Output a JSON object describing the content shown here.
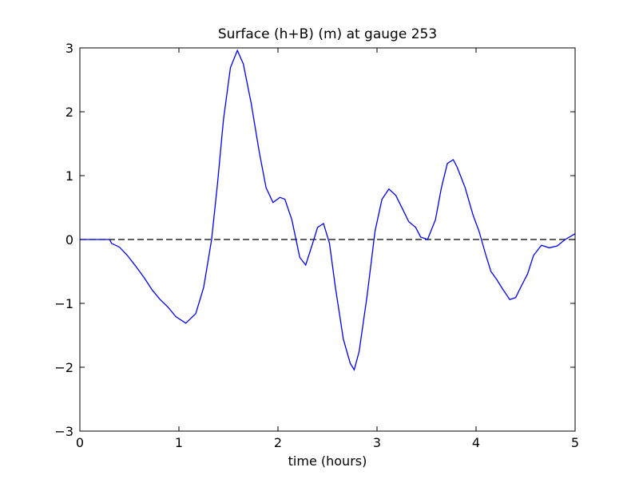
{
  "chart_data": {
    "type": "line",
    "title": "Surface (h+B) (m) at gauge 253",
    "x_label": "time (hours)",
    "x": [
      0,
      0.3,
      0.32,
      0.4,
      0.48,
      0.56,
      0.65,
      0.73,
      0.81,
      0.89,
      0.97,
      1.07,
      1.17,
      1.25,
      1.33,
      1.39,
      1.45,
      1.52,
      1.59,
      1.65,
      1.73,
      1.81,
      1.88,
      1.95,
      2.02,
      2.07,
      2.14,
      2.22,
      2.28,
      2.35,
      2.4,
      2.46,
      2.52,
      2.58,
      2.66,
      2.73,
      2.77,
      2.82,
      2.9,
      2.98,
      3.05,
      3.12,
      3.19,
      3.27,
      3.32,
      3.39,
      3.44,
      3.51,
      3.59,
      3.65,
      3.71,
      3.77,
      3.81,
      3.89,
      3.97,
      4.03,
      4.1,
      4.15,
      4.21,
      4.27,
      4.34,
      4.4,
      4.45,
      4.52,
      4.58,
      4.66,
      4.74,
      4.82,
      4.9,
      5.0
    ],
    "series": [
      {
        "color": "#0000ff",
        "values": [
          0,
          0,
          -0.06,
          -0.12,
          -0.25,
          -0.41,
          -0.6,
          -0.79,
          -0.94,
          -1.06,
          -1.21,
          -1.31,
          -1.16,
          -0.75,
          0,
          0.88,
          1.88,
          2.69,
          2.96,
          2.75,
          2.13,
          1.38,
          0.81,
          0.58,
          0.66,
          0.63,
          0.31,
          -0.28,
          -0.4,
          -0.06,
          0.19,
          0.25,
          -0.06,
          -0.75,
          -1.56,
          -1.94,
          -2.04,
          -1.75,
          -0.88,
          0.13,
          0.63,
          0.79,
          0.69,
          0.44,
          0.28,
          0.19,
          0.04,
          0,
          0.31,
          0.81,
          1.19,
          1.25,
          1.13,
          0.81,
          0.38,
          0.13,
          -0.25,
          -0.5,
          -0.63,
          -0.78,
          -0.94,
          -0.91,
          -0.75,
          -0.54,
          -0.25,
          -0.09,
          -0.13,
          -0.1,
          0,
          0.09
        ]
      }
    ],
    "hline": {
      "y": 0,
      "color": "#000000",
      "style": "dashed"
    },
    "xlim": [
      0,
      5
    ],
    "xticks": [
      0,
      1,
      2,
      3,
      4,
      5
    ],
    "ylim": [
      -3,
      3
    ],
    "yticks": [
      {
        "value": -3,
        "label": "−3"
      },
      {
        "value": -2,
        "label": "−2"
      },
      {
        "value": -1,
        "label": "−1"
      },
      0,
      1,
      2,
      3
    ],
    "grid": false
  }
}
